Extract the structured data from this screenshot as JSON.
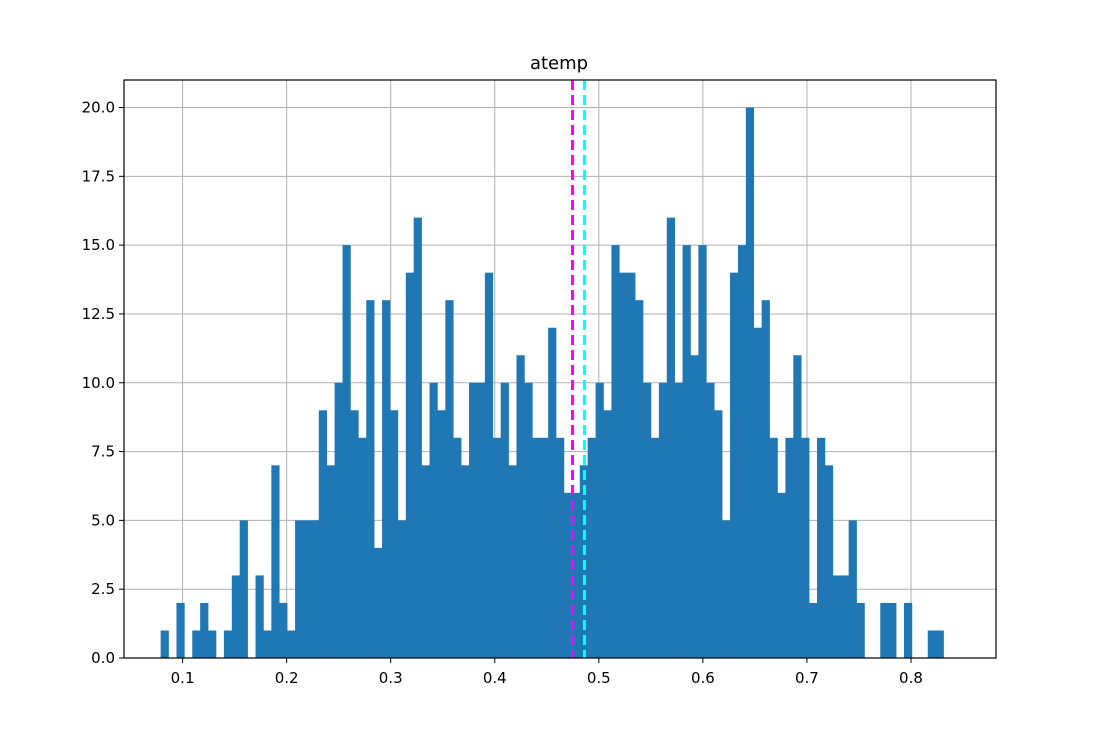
{
  "chart_data": {
    "type": "bar",
    "title": "atemp",
    "xlabel": "",
    "ylabel": "",
    "xlim": [
      0.0437,
      0.8817
    ],
    "ylim": [
      0,
      21
    ],
    "grid": true,
    "bin_width": 0.0076,
    "bar_color": "#1f77b4",
    "grid_color": "#b0b0b0",
    "x_ticks": [
      0.1,
      0.2,
      0.3,
      0.4,
      0.5,
      0.6,
      0.7,
      0.8
    ],
    "x_tick_labels": [
      "0.1",
      "0.2",
      "0.3",
      "0.4",
      "0.5",
      "0.6",
      "0.7",
      "0.8"
    ],
    "y_ticks": [
      0,
      2.5,
      5,
      7.5,
      10,
      12.5,
      15,
      17.5,
      20
    ],
    "y_tick_labels": [
      "0.0",
      "2.5",
      "5.0",
      "7.5",
      "10.0",
      "12.5",
      "15.0",
      "17.5",
      "20.0"
    ],
    "bins_start": 0.0789,
    "counts": [
      1,
      0,
      2,
      0,
      1,
      2,
      1,
      0,
      1,
      3,
      5,
      0,
      3,
      1,
      7,
      2,
      1,
      5,
      5,
      5,
      9,
      7,
      10,
      15,
      9,
      8,
      13,
      4,
      13,
      9,
      5,
      14,
      16,
      7,
      10,
      9,
      13,
      8,
      7,
      10,
      10,
      14,
      8,
      10,
      7,
      11,
      10,
      8,
      8,
      12,
      8,
      6,
      6,
      7,
      8,
      10,
      9,
      15,
      14,
      14,
      13,
      10,
      8,
      10,
      16,
      10,
      15,
      11,
      15,
      10,
      9,
      5,
      14,
      15,
      20,
      12,
      13,
      8,
      6,
      8,
      11,
      8,
      2,
      8,
      7,
      3,
      3,
      5,
      2,
      0,
      0,
      2,
      2,
      0,
      2,
      0,
      0,
      1,
      1
    ],
    "reference_lines": [
      {
        "x": 0.4747,
        "color": "#ff00ff",
        "style": "dashed"
      },
      {
        "x": 0.4862,
        "color": "#00ffff",
        "style": "dashed"
      }
    ]
  }
}
